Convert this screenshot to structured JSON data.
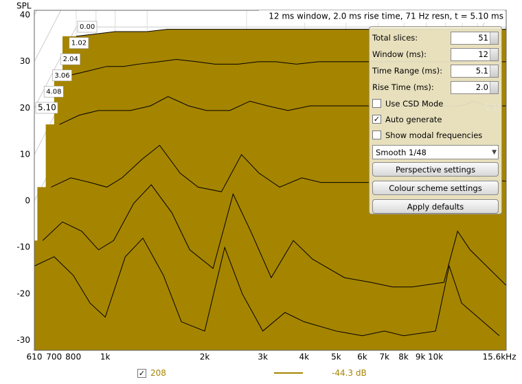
{
  "chart_data": {
    "type": "waterfall",
    "title": "12 ms window, 2.0 ms rise time,  71 Hz resn, t = 5.10 ms",
    "y_label": "SPL",
    "color": "#a58400",
    "xlim": [
      610,
      15600
    ],
    "log_x": true,
    "xticks": [
      610,
      700,
      800,
      {
        "value": 1000,
        "label": "1k"
      },
      {
        "value": 2000,
        "label": "2k"
      },
      {
        "value": 3000,
        "label": "3k"
      },
      {
        "value": 4000,
        "label": "4k"
      },
      {
        "value": 5000,
        "label": "5k"
      },
      {
        "value": 6000,
        "label": "6k"
      },
      {
        "value": 7000,
        "label": "7k"
      },
      {
        "value": 8000,
        "label": "8k"
      },
      {
        "value": 9000,
        "label": "9k"
      },
      {
        "value": 10000,
        "label": "10k"
      },
      {
        "value": 15600,
        "label": "15.6kHz"
      }
    ],
    "ylim": [
      -32,
      40
    ],
    "yticks": [
      40,
      30,
      20,
      10,
      0,
      -10,
      -20,
      -30
    ],
    "grid": true,
    "x": [
      610,
      700,
      800,
      900,
      1000,
      1150,
      1300,
      1500,
      1700,
      2000,
      2300,
      2600,
      3000,
      3500,
      4000,
      5000,
      6000,
      7000,
      8000,
      10000,
      11000,
      12000,
      15600
    ],
    "slices": [
      {
        "time": {
          "value": 0,
          "label": "0.00"
        },
        "values": [
          18,
          18.5,
          19,
          19,
          19,
          19.5,
          19.5,
          19.5,
          19.5,
          19.5,
          19.5,
          19.5,
          19.5,
          19.5,
          19.5,
          19.5,
          19.5,
          19.5,
          19.5,
          19.5,
          19.5,
          19.5,
          19.5
        ]
      },
      {
        "time": 1.02,
        "values": [
          13,
          14,
          15,
          15,
          15.5,
          16,
          16.5,
          16,
          15.5,
          15.5,
          16,
          16,
          15.5,
          16,
          16,
          16,
          16,
          16,
          16,
          16,
          16.5,
          16,
          16
        ]
      },
      {
        "time": 2.04,
        "values": [
          6,
          8,
          9,
          9,
          9,
          10,
          12,
          10,
          9,
          9,
          11,
          10,
          9,
          10,
          10,
          10,
          10,
          10,
          10,
          10,
          11,
          10,
          10
        ]
      },
      {
        "time": 3.06,
        "values": [
          -4,
          -2,
          -3,
          -4,
          -2,
          2,
          5,
          -1,
          -4,
          -5,
          3,
          -1,
          -4,
          -2,
          -3,
          -3,
          -3,
          -3,
          -3,
          -3,
          0,
          -2,
          -3
        ]
      },
      {
        "time": 4.08,
        "values": [
          -12,
          -8,
          -10,
          -14,
          -12,
          -4,
          0,
          -6,
          -14,
          -18,
          -2,
          -10,
          -20,
          -12,
          -16,
          -20,
          -21,
          -22,
          -22,
          -21,
          -10,
          -14,
          -22
        ]
      },
      {
        "time": {
          "value": 5.1,
          "label": "5.10"
        },
        "values": [
          -14,
          -12,
          -16,
          -22,
          -25,
          -12,
          -8,
          -16,
          -26,
          -28,
          -10,
          -20,
          -28,
          -24,
          -26,
          -28,
          -29,
          -28,
          -29,
          -28,
          -14,
          -22,
          -29
        ]
      }
    ]
  },
  "panel": {
    "fields": [
      {
        "label": "Total slices:",
        "value": "51"
      },
      {
        "label": "Window (ms):",
        "value": "12"
      },
      {
        "label": "Time Range (ms):",
        "value": "5.1"
      },
      {
        "label": "Rise Time (ms):",
        "value": "2.0"
      }
    ],
    "checkboxes": [
      {
        "label": "Use CSD Mode",
        "checked": false
      },
      {
        "label": "Auto generate",
        "checked": true
      },
      {
        "label": "Show modal frequencies",
        "checked": false
      }
    ],
    "smoothing": "Smooth 1/48",
    "buttons": [
      "Perspective settings",
      "Colour scheme settings",
      "Apply defaults"
    ]
  },
  "legend": {
    "checked": true,
    "name": "208",
    "level": "-44.3 dB"
  }
}
